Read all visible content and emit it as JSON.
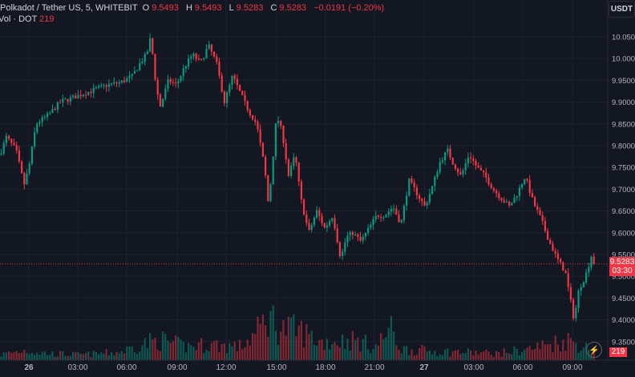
{
  "header": {
    "symbol": "Polkadot / Tether US, 5, WHITEBIT",
    "o_label": "O",
    "o_value": "9.5493",
    "h_label": "H",
    "h_value": "9.5493",
    "l_label": "L",
    "l_value": "9.5283",
    "c_label": "C",
    "c_value": "9.5283",
    "change": "−0.0191 (−0.20%)"
  },
  "volume_legend": {
    "label": "Vol · DOT",
    "value": "219"
  },
  "currency_button": "USDT",
  "last_price": {
    "value": "9.5283",
    "countdown": "03:30"
  },
  "last_volume": "219",
  "colors": {
    "up": "#089981",
    "down": "#f23645",
    "background": "#131722",
    "grid": "#1e222d",
    "text": "#b2b5be"
  },
  "icons": {
    "alert": "lightning-icon"
  },
  "chart_data": {
    "type": "candlestick",
    "y_ticks": [
      "10.0500",
      "10.0000",
      "9.9500",
      "9.9000",
      "9.8500",
      "9.8000",
      "9.7500",
      "9.7000",
      "9.6500",
      "9.6000",
      "9.5500",
      "9.5000",
      "9.4500",
      "9.4000",
      "9.3500"
    ],
    "x_ticks": [
      "26",
      "03:00",
      "06:00",
      "09:00",
      "12:00",
      "15:00",
      "18:00",
      "21:00",
      "27",
      "03:00",
      "06:00",
      "09:00"
    ],
    "ylim": [
      9.325,
      10.075
    ],
    "close_path": [
      [
        0,
        9.78
      ],
      [
        8,
        9.82
      ],
      [
        20,
        9.79
      ],
      [
        30,
        9.71
      ],
      [
        36,
        9.75
      ],
      [
        45,
        9.85
      ],
      [
        60,
        9.87
      ],
      [
        75,
        9.9
      ],
      [
        90,
        9.91
      ],
      [
        105,
        9.92
      ],
      [
        120,
        9.93
      ],
      [
        135,
        9.94
      ],
      [
        150,
        9.945
      ],
      [
        165,
        9.96
      ],
      [
        175,
        9.99
      ],
      [
        183,
        10.01
      ],
      [
        188,
        10.05
      ],
      [
        195,
        9.93
      ],
      [
        200,
        9.89
      ],
      [
        210,
        9.95
      ],
      [
        220,
        9.94
      ],
      [
        230,
        9.98
      ],
      [
        240,
        10.01
      ],
      [
        250,
        9.99
      ],
      [
        260,
        10.03
      ],
      [
        270,
        9.99
      ],
      [
        280,
        9.9
      ],
      [
        290,
        9.96
      ],
      [
        300,
        9.92
      ],
      [
        310,
        9.88
      ],
      [
        320,
        9.85
      ],
      [
        330,
        9.75
      ],
      [
        335,
        9.66
      ],
      [
        345,
        9.87
      ],
      [
        352,
        9.83
      ],
      [
        360,
        9.73
      ],
      [
        368,
        9.78
      ],
      [
        375,
        9.68
      ],
      [
        385,
        9.6
      ],
      [
        395,
        9.65
      ],
      [
        405,
        9.61
      ],
      [
        415,
        9.64
      ],
      [
        425,
        9.54
      ],
      [
        432,
        9.59
      ],
      [
        440,
        9.6
      ],
      [
        450,
        9.58
      ],
      [
        460,
        9.61
      ],
      [
        470,
        9.64
      ],
      [
        480,
        9.64
      ],
      [
        490,
        9.66
      ],
      [
        500,
        9.62
      ],
      [
        510,
        9.72
      ],
      [
        520,
        9.69
      ],
      [
        530,
        9.66
      ],
      [
        540,
        9.71
      ],
      [
        548,
        9.76
      ],
      [
        558,
        9.79
      ],
      [
        565,
        9.76
      ],
      [
        575,
        9.73
      ],
      [
        585,
        9.78
      ],
      [
        595,
        9.75
      ],
      [
        605,
        9.73
      ],
      [
        615,
        9.7
      ],
      [
        625,
        9.68
      ],
      [
        635,
        9.66
      ],
      [
        645,
        9.69
      ],
      [
        655,
        9.73
      ],
      [
        665,
        9.67
      ],
      [
        675,
        9.63
      ],
      [
        685,
        9.58
      ],
      [
        695,
        9.54
      ],
      [
        705,
        9.51
      ],
      [
        712,
        9.44
      ],
      [
        716,
        9.4
      ],
      [
        722,
        9.47
      ],
      [
        730,
        9.5
      ],
      [
        738,
        9.55
      ],
      [
        741,
        9.528
      ]
    ],
    "volume_path": [
      [
        0,
        0.12
      ],
      [
        30,
        0.22
      ],
      [
        60,
        0.15
      ],
      [
        100,
        0.12
      ],
      [
        150,
        0.18
      ],
      [
        185,
        0.4
      ],
      [
        200,
        0.45
      ],
      [
        230,
        0.3
      ],
      [
        260,
        0.35
      ],
      [
        300,
        0.3
      ],
      [
        320,
        0.6
      ],
      [
        335,
        1.0
      ],
      [
        350,
        0.7
      ],
      [
        375,
        0.65
      ],
      [
        400,
        0.4
      ],
      [
        440,
        0.45
      ],
      [
        470,
        0.3
      ],
      [
        486,
        0.72
      ],
      [
        500,
        0.25
      ],
      [
        540,
        0.2
      ],
      [
        580,
        0.18
      ],
      [
        620,
        0.15
      ],
      [
        660,
        0.25
      ],
      [
        690,
        0.38
      ],
      [
        710,
        0.45
      ],
      [
        741,
        0.2
      ]
    ]
  }
}
